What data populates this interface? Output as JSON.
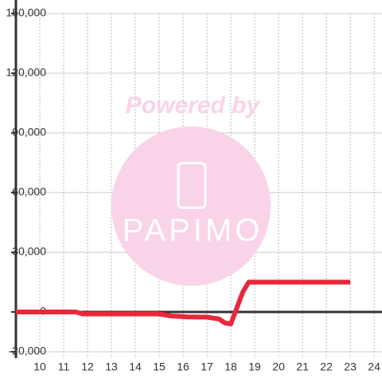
{
  "chart_data": {
    "type": "line",
    "watermark": {
      "top": "Powered by",
      "bottom": "PAPIMO"
    },
    "x": [
      9,
      11.5,
      11.8,
      15,
      15.5,
      16.2,
      17,
      17.5,
      17.75,
      18,
      18.5,
      18.75,
      23
    ],
    "series": [
      {
        "color": "#e8283a",
        "values": [
          0,
          0,
          -1000,
          -1000,
          -2000,
          -2500,
          -2600,
          -3500,
          -5500,
          -6000,
          10000,
          15000,
          15000
        ]
      }
    ],
    "xlim": [
      9,
      24.33
    ],
    "xticks": [
      10,
      11,
      12,
      13,
      14,
      15,
      16,
      17,
      18,
      19,
      20,
      21,
      22,
      23,
      24
    ],
    "ylim": [
      -20000,
      150000
    ],
    "yticks": [
      {
        "value": -20000,
        "label": "-20,000"
      },
      0,
      {
        "value": 30000,
        "label": "30,000"
      },
      {
        "value": 60000,
        "label": "60,000"
      },
      {
        "value": 90000,
        "label": "90,000"
      },
      {
        "value": 120000,
        "label": "120,000"
      },
      {
        "value": 150000,
        "label": "150,000"
      }
    ],
    "grid": true
  }
}
